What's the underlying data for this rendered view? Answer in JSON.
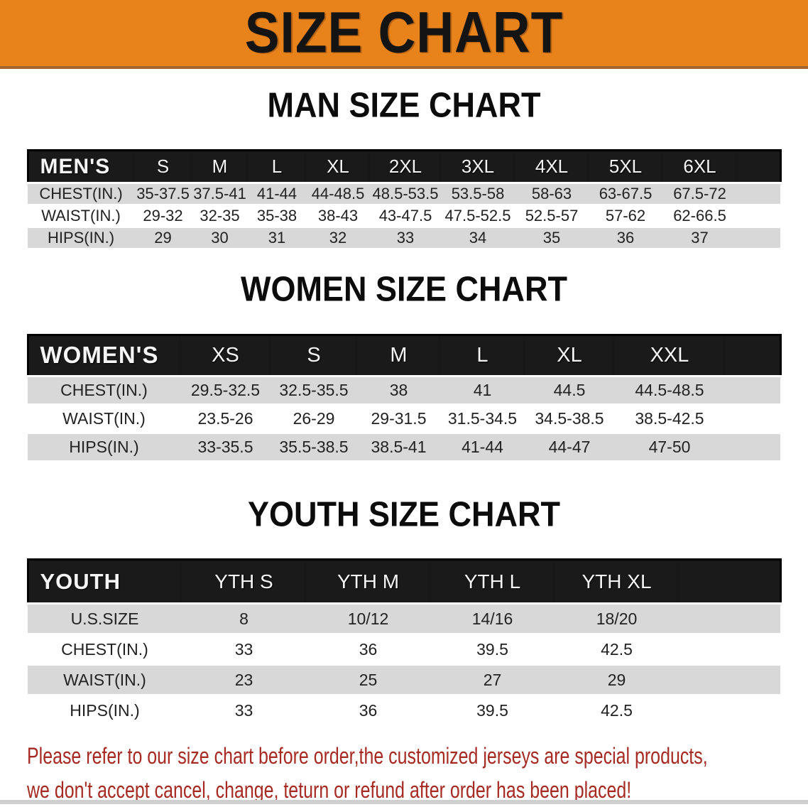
{
  "banner": {
    "title": "SIZE CHART"
  },
  "colors": {
    "banner_orange": "#E8821B",
    "banner_edge": "#A4672A",
    "header_bar_black": "#1A1A1A",
    "row_gray": "#D8D8D8",
    "disclaimer_red": "#A62A22"
  },
  "sections": [
    {
      "heading": "MAN SIZE CHART",
      "corner": "MEN'S",
      "sizes": [
        "S",
        "M",
        "L",
        "XL",
        "2XL",
        "3XL",
        "4XL",
        "5XL",
        "6XL"
      ],
      "rows": [
        {
          "label": "CHEST(IN.)",
          "values": [
            "35-37.5",
            "37.5-41",
            "41-44",
            "44-48.5",
            "48.5-53.5",
            "53.5-58",
            "58-63",
            "63-67.5",
            "67.5-72"
          ]
        },
        {
          "label": "WAIST(IN.)",
          "values": [
            "29-32",
            "32-35",
            "35-38",
            "38-43",
            "43-47.5",
            "47.5-52.5",
            "52.5-57",
            "57-62",
            "62-66.5"
          ]
        },
        {
          "label": "HIPS(IN.)",
          "values": [
            "29",
            "30",
            "31",
            "32",
            "33",
            "34",
            "35",
            "36",
            "37"
          ]
        }
      ]
    },
    {
      "heading": "WOMEN SIZE CHART",
      "corner": "WOMEN'S",
      "sizes": [
        "XS",
        "S",
        "M",
        "L",
        "XL",
        "XXL"
      ],
      "rows": [
        {
          "label": "CHEST(IN.)",
          "values": [
            "29.5-32.5",
            "32.5-35.5",
            "38",
            "41",
            "44.5",
            "44.5-48.5"
          ]
        },
        {
          "label": "WAIST(IN.)",
          "values": [
            "23.5-26",
            "26-29",
            "29-31.5",
            "31.5-34.5",
            "34.5-38.5",
            "38.5-42.5"
          ]
        },
        {
          "label": "HIPS(IN.)",
          "values": [
            "33-35.5",
            "35.5-38.5",
            "38.5-41",
            "41-44",
            "44-47",
            "47-50"
          ]
        }
      ]
    },
    {
      "heading": "YOUTH SIZE CHART",
      "corner": "YOUTH",
      "sizes": [
        "YTH S",
        "YTH M",
        "YTH L",
        "YTH XL"
      ],
      "rows": [
        {
          "label": "U.S.SIZE",
          "values": [
            "8",
            "10/12",
            "14/16",
            "18/20"
          ]
        },
        {
          "label": "CHEST(IN.)",
          "values": [
            "33",
            "36",
            "39.5",
            "42.5"
          ]
        },
        {
          "label": "WAIST(IN.)",
          "values": [
            "23",
            "25",
            "27",
            "29"
          ]
        },
        {
          "label": "HIPS(IN.)",
          "values": [
            "33",
            "36",
            "39.5",
            "42.5"
          ]
        }
      ]
    }
  ],
  "disclaimer": {
    "line1": "Please refer to our size chart before order,the customized jerseys are special products,",
    "line2": "we don't accept cancel, change, teturn or refund after order has been placed!"
  }
}
